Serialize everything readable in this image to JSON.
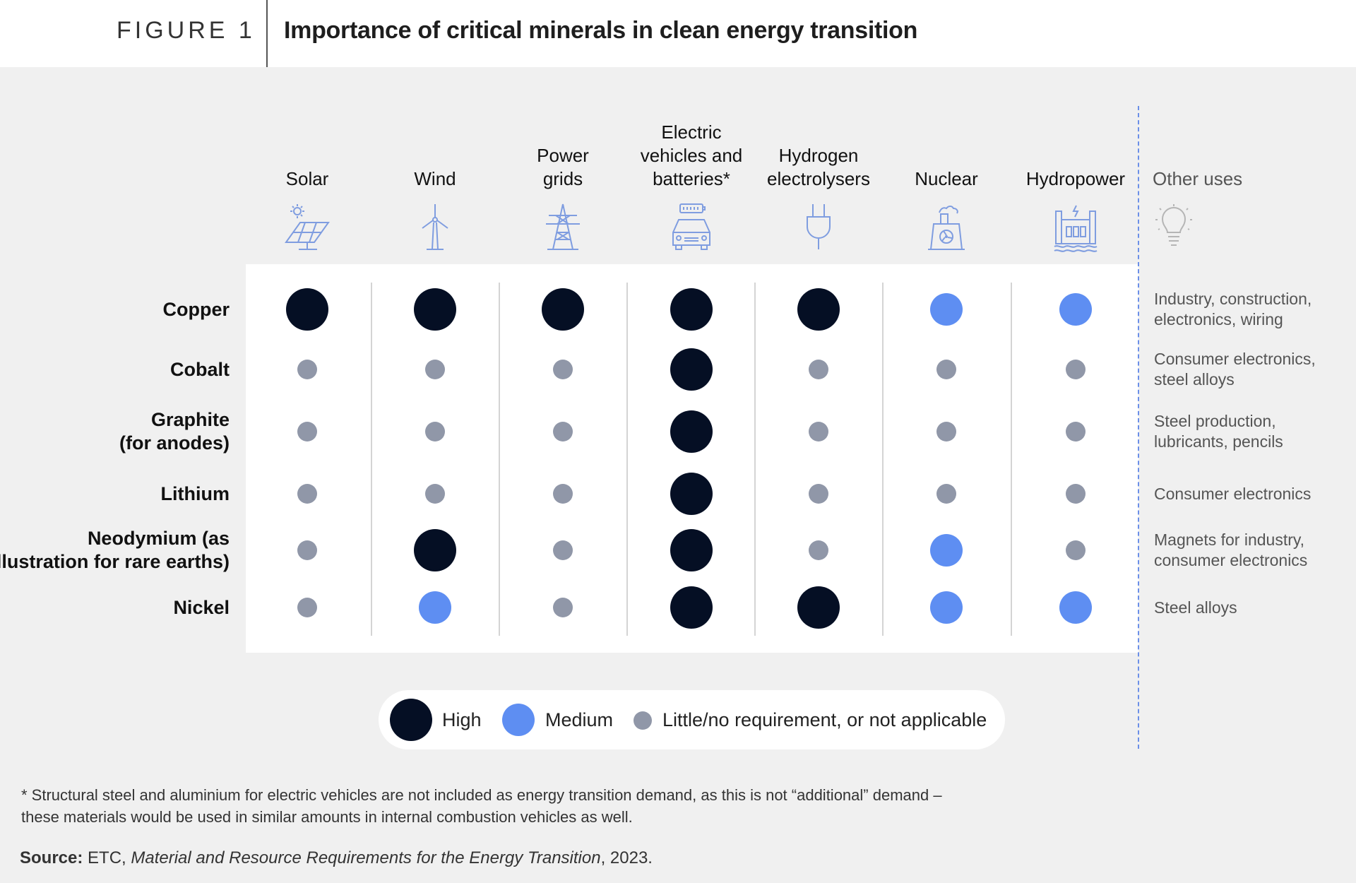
{
  "header": {
    "figure_label": "FIGURE 1",
    "title": "Importance of critical minerals in clean energy transition"
  },
  "colors": {
    "high": "#050f24",
    "medium": "#5e8ef2",
    "low": "#9097a8",
    "icon": "#7f9de0",
    "other_icon": "#b5b5b5"
  },
  "chart_data": {
    "type": "table",
    "title": "Importance of critical minerals in clean energy transition",
    "columns": [
      {
        "lines": [
          "Solar"
        ],
        "icon": "solar-panel-icon"
      },
      {
        "lines": [
          "Wind"
        ],
        "icon": "wind-turbine-icon"
      },
      {
        "lines": [
          "Power",
          "grids"
        ],
        "icon": "power-pylon-icon"
      },
      {
        "lines": [
          "Electric",
          "vehicles and",
          "batteries*"
        ],
        "icon": "electric-car-icon"
      },
      {
        "lines": [
          "Hydrogen",
          "electrolysers"
        ],
        "icon": "plug-icon"
      },
      {
        "lines": [
          "Nuclear"
        ],
        "icon": "nuclear-plant-icon"
      },
      {
        "lines": [
          "Hydropower"
        ],
        "icon": "hydropower-dam-icon"
      }
    ],
    "other_uses_header": "Other uses",
    "other_uses_icon": "lightbulb-icon",
    "rows": [
      {
        "mineral": [
          "Copper"
        ],
        "values": [
          "High",
          "High",
          "High",
          "High",
          "High",
          "Medium",
          "Medium"
        ],
        "other_uses": [
          "Industry, construction,",
          "electronics, wiring"
        ]
      },
      {
        "mineral": [
          "Cobalt"
        ],
        "values": [
          "Low",
          "Low",
          "Low",
          "High",
          "Low",
          "Low",
          "Low"
        ],
        "other_uses": [
          "Consumer electronics,",
          "steel alloys"
        ]
      },
      {
        "mineral": [
          "Graphite",
          "(for anodes)"
        ],
        "values": [
          "Low",
          "Low",
          "Low",
          "High",
          "Low",
          "Low",
          "Low"
        ],
        "other_uses": [
          "Steel production,",
          "lubricants, pencils"
        ]
      },
      {
        "mineral": [
          "Lithium"
        ],
        "values": [
          "Low",
          "Low",
          "Low",
          "High",
          "Low",
          "Low",
          "Low"
        ],
        "other_uses": [
          "Consumer electronics"
        ]
      },
      {
        "mineral": [
          "Neodymium (as",
          "illustration for rare earths)"
        ],
        "values": [
          "Low",
          "High",
          "Low",
          "High",
          "Low",
          "Medium",
          "Low"
        ],
        "other_uses": [
          "Magnets for industry,",
          "consumer electronics"
        ]
      },
      {
        "mineral": [
          "Nickel"
        ],
        "values": [
          "Low",
          "Medium",
          "Low",
          "High",
          "High",
          "Medium",
          "Medium"
        ],
        "other_uses": [
          "Steel alloys"
        ]
      }
    ],
    "legend": [
      {
        "level": "High",
        "label": "High"
      },
      {
        "level": "Medium",
        "label": "Medium"
      },
      {
        "level": "Low",
        "label": "Little/no requirement, or not applicable"
      }
    ]
  },
  "footnote": {
    "line1": "* Structural steel and aluminium for electric vehicles are not included as energy transition demand, as this is not “additional” demand –",
    "line2": "these materials would be used in similar amounts in internal combustion vehicles as well."
  },
  "source": {
    "label": "Source:",
    "prefix": " ETC, ",
    "title": "Material and Resource Requirements for the Energy Transition",
    "suffix": ", 2023."
  }
}
